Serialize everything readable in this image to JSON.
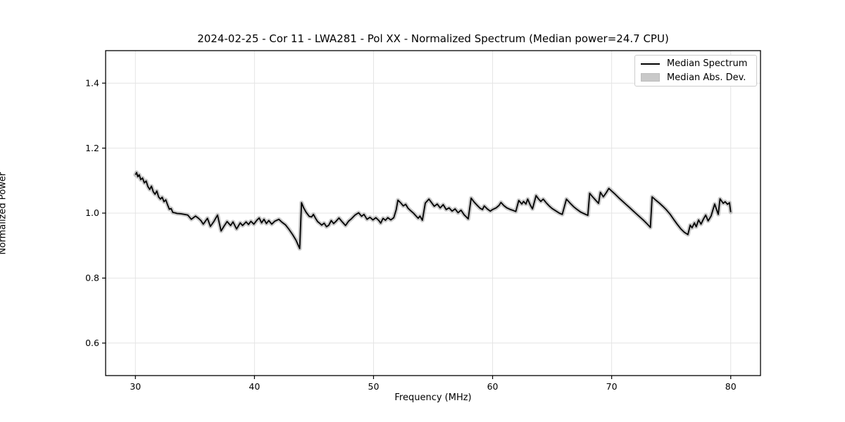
{
  "figure": {
    "title": "2024-02-25 - Cor 11 - LWA281 - Pol XX - Normalized Spectrum (Median power=24.7 CPU)"
  },
  "legend": {
    "items": [
      {
        "label": "Median Spectrum",
        "swatch": "line",
        "color": "#000000"
      },
      {
        "label": "Median Abs. Dev.",
        "swatch": "patch",
        "color": "#c9c9c9"
      }
    ]
  },
  "chart_data": {
    "type": "line",
    "title": "2024-02-25 - Cor 11 - LWA281 - Pol XX - Normalized Spectrum (Median power=24.7 CPU)",
    "xlabel": "Frequency (MHz)",
    "ylabel": "Normalized Power",
    "xlim": [
      27.5,
      82.5
    ],
    "ylim": [
      0.5,
      1.5
    ],
    "xticks": [
      30,
      40,
      50,
      60,
      70,
      80
    ],
    "xtick_labels": [
      "30",
      "40",
      "50",
      "60",
      "70",
      "80"
    ],
    "yticks": [
      0.6,
      0.8,
      1.0,
      1.2,
      1.4
    ],
    "ytick_labels": [
      "0.6",
      "0.8",
      "1.0",
      "1.2",
      "1.4"
    ],
    "grid": true,
    "grid_color": "#e4e4e4",
    "legend_position": "upper right",
    "series": [
      {
        "name": "Median Spectrum",
        "color": "#000000",
        "style": "line",
        "points": [
          [
            30.0,
            1.118
          ],
          [
            30.1,
            1.125
          ],
          [
            30.2,
            1.112
          ],
          [
            30.32,
            1.118
          ],
          [
            30.45,
            1.103
          ],
          [
            30.6,
            1.108
          ],
          [
            30.75,
            1.093
          ],
          [
            30.9,
            1.099
          ],
          [
            31.05,
            1.082
          ],
          [
            31.2,
            1.073
          ],
          [
            31.35,
            1.083
          ],
          [
            31.5,
            1.066
          ],
          [
            31.65,
            1.058
          ],
          [
            31.8,
            1.068
          ],
          [
            31.95,
            1.05
          ],
          [
            32.1,
            1.043
          ],
          [
            32.25,
            1.049
          ],
          [
            32.4,
            1.035
          ],
          [
            32.55,
            1.041
          ],
          [
            32.7,
            1.026
          ],
          [
            32.85,
            1.012
          ],
          [
            33.0,
            1.014
          ],
          [
            33.15,
            1.002
          ],
          [
            33.3,
            1.001
          ],
          [
            33.5,
            0.999
          ],
          [
            33.8,
            0.998
          ],
          [
            34.1,
            0.996
          ],
          [
            34.4,
            0.994
          ],
          [
            34.7,
            0.981
          ],
          [
            35.05,
            0.991
          ],
          [
            35.3,
            0.984
          ],
          [
            35.5,
            0.977
          ],
          [
            35.7,
            0.966
          ],
          [
            36.05,
            0.984
          ],
          [
            36.3,
            0.959
          ],
          [
            36.6,
            0.975
          ],
          [
            36.9,
            0.994
          ],
          [
            37.2,
            0.945
          ],
          [
            37.45,
            0.96
          ],
          [
            37.7,
            0.974
          ],
          [
            38.0,
            0.962
          ],
          [
            38.2,
            0.973
          ],
          [
            38.5,
            0.951
          ],
          [
            38.8,
            0.97
          ],
          [
            39.0,
            0.962
          ],
          [
            39.3,
            0.973
          ],
          [
            39.5,
            0.965
          ],
          [
            39.7,
            0.975
          ],
          [
            39.95,
            0.966
          ],
          [
            40.2,
            0.978
          ],
          [
            40.4,
            0.985
          ],
          [
            40.6,
            0.97
          ],
          [
            40.8,
            0.981
          ],
          [
            41.0,
            0.968
          ],
          [
            41.2,
            0.977
          ],
          [
            41.45,
            0.966
          ],
          [
            41.7,
            0.975
          ],
          [
            42.05,
            0.981
          ],
          [
            42.3,
            0.972
          ],
          [
            42.6,
            0.964
          ],
          [
            42.9,
            0.95
          ],
          [
            43.2,
            0.934
          ],
          [
            43.5,
            0.916
          ],
          [
            43.8,
            0.891
          ],
          [
            43.95,
            1.032
          ],
          [
            44.15,
            1.015
          ],
          [
            44.35,
            1.002
          ],
          [
            44.6,
            0.99
          ],
          [
            44.8,
            0.988
          ],
          [
            44.95,
            0.996
          ],
          [
            45.15,
            0.983
          ],
          [
            45.3,
            0.974
          ],
          [
            45.5,
            0.968
          ],
          [
            45.65,
            0.963
          ],
          [
            45.85,
            0.969
          ],
          [
            46.05,
            0.958
          ],
          [
            46.25,
            0.963
          ],
          [
            46.45,
            0.977
          ],
          [
            46.65,
            0.968
          ],
          [
            46.85,
            0.975
          ],
          [
            47.1,
            0.985
          ],
          [
            47.35,
            0.974
          ],
          [
            47.65,
            0.962
          ],
          [
            47.9,
            0.975
          ],
          [
            48.15,
            0.983
          ],
          [
            48.45,
            0.994
          ],
          [
            48.75,
            1.001
          ],
          [
            49.0,
            0.99
          ],
          [
            49.2,
            0.996
          ],
          [
            49.45,
            0.981
          ],
          [
            49.7,
            0.987
          ],
          [
            49.95,
            0.979
          ],
          [
            50.2,
            0.986
          ],
          [
            50.45,
            0.977
          ],
          [
            50.6,
            0.969
          ],
          [
            50.8,
            0.984
          ],
          [
            51.0,
            0.978
          ],
          [
            51.2,
            0.986
          ],
          [
            51.45,
            0.979
          ],
          [
            51.7,
            0.986
          ],
          [
            51.9,
            1.01
          ],
          [
            52.05,
            1.04
          ],
          [
            52.3,
            1.031
          ],
          [
            52.5,
            1.022
          ],
          [
            52.7,
            1.027
          ],
          [
            52.9,
            1.015
          ],
          [
            53.1,
            1.008
          ],
          [
            53.35,
            1.0
          ],
          [
            53.6,
            0.99
          ],
          [
            53.75,
            0.984
          ],
          [
            53.9,
            0.991
          ],
          [
            54.1,
            0.978
          ],
          [
            54.35,
            1.031
          ],
          [
            54.65,
            1.043
          ],
          [
            54.9,
            1.031
          ],
          [
            55.1,
            1.021
          ],
          [
            55.35,
            1.028
          ],
          [
            55.6,
            1.016
          ],
          [
            55.85,
            1.026
          ],
          [
            56.1,
            1.011
          ],
          [
            56.35,
            1.016
          ],
          [
            56.6,
            1.006
          ],
          [
            56.85,
            1.013
          ],
          [
            57.1,
            1.001
          ],
          [
            57.35,
            1.009
          ],
          [
            57.6,
            0.995
          ],
          [
            57.8,
            0.988
          ],
          [
            57.95,
            0.982
          ],
          [
            58.2,
            1.046
          ],
          [
            58.45,
            1.034
          ],
          [
            58.7,
            1.024
          ],
          [
            58.95,
            1.015
          ],
          [
            59.15,
            1.011
          ],
          [
            59.3,
            1.022
          ],
          [
            59.55,
            1.013
          ],
          [
            59.8,
            1.006
          ],
          [
            60.0,
            1.011
          ],
          [
            60.3,
            1.016
          ],
          [
            60.55,
            1.024
          ],
          [
            60.7,
            1.033
          ],
          [
            60.95,
            1.023
          ],
          [
            61.2,
            1.016
          ],
          [
            61.5,
            1.011
          ],
          [
            61.75,
            1.008
          ],
          [
            61.95,
            1.005
          ],
          [
            62.2,
            1.039
          ],
          [
            62.45,
            1.028
          ],
          [
            62.6,
            1.036
          ],
          [
            62.8,
            1.028
          ],
          [
            62.95,
            1.043
          ],
          [
            63.15,
            1.026
          ],
          [
            63.35,
            1.013
          ],
          [
            63.65,
            1.054
          ],
          [
            63.85,
            1.044
          ],
          [
            64.05,
            1.036
          ],
          [
            64.25,
            1.043
          ],
          [
            64.5,
            1.032
          ],
          [
            64.75,
            1.022
          ],
          [
            65.0,
            1.014
          ],
          [
            65.3,
            1.007
          ],
          [
            65.6,
            1.0
          ],
          [
            65.85,
            0.996
          ],
          [
            66.2,
            1.043
          ],
          [
            66.5,
            1.031
          ],
          [
            66.8,
            1.02
          ],
          [
            67.1,
            1.011
          ],
          [
            67.4,
            1.003
          ],
          [
            67.7,
            0.998
          ],
          [
            68.0,
            0.993
          ],
          [
            68.15,
            1.061
          ],
          [
            68.4,
            1.05
          ],
          [
            68.65,
            1.04
          ],
          [
            68.9,
            1.03
          ],
          [
            69.05,
            1.064
          ],
          [
            69.3,
            1.05
          ],
          [
            69.55,
            1.063
          ],
          [
            69.76,
            1.076
          ],
          [
            70.0,
            1.068
          ],
          [
            70.3,
            1.058
          ],
          [
            70.6,
            1.047
          ],
          [
            70.9,
            1.037
          ],
          [
            71.2,
            1.027
          ],
          [
            71.5,
            1.017
          ],
          [
            71.8,
            1.007
          ],
          [
            72.1,
            0.997
          ],
          [
            72.4,
            0.987
          ],
          [
            72.7,
            0.977
          ],
          [
            73.0,
            0.966
          ],
          [
            73.25,
            0.956
          ],
          [
            73.4,
            1.05
          ],
          [
            73.7,
            1.04
          ],
          [
            74.0,
            1.031
          ],
          [
            74.3,
            1.021
          ],
          [
            74.6,
            1.01
          ],
          [
            74.9,
            0.997
          ],
          [
            75.2,
            0.981
          ],
          [
            75.5,
            0.966
          ],
          [
            75.8,
            0.952
          ],
          [
            76.1,
            0.941
          ],
          [
            76.4,
            0.934
          ],
          [
            76.6,
            0.963
          ],
          [
            76.75,
            0.955
          ],
          [
            76.95,
            0.97
          ],
          [
            77.1,
            0.958
          ],
          [
            77.3,
            0.979
          ],
          [
            77.5,
            0.966
          ],
          [
            77.7,
            0.981
          ],
          [
            77.9,
            0.994
          ],
          [
            78.1,
            0.976
          ],
          [
            78.35,
            0.991
          ],
          [
            78.65,
            1.028
          ],
          [
            78.95,
            0.996
          ],
          [
            79.1,
            1.044
          ],
          [
            79.37,
            1.03
          ],
          [
            79.53,
            1.035
          ],
          [
            79.73,
            1.027
          ],
          [
            79.89,
            1.032
          ],
          [
            80.0,
            1.003
          ]
        ]
      },
      {
        "name": "Median Abs. Dev.",
        "color": "#c9c9c9",
        "style": "band",
        "follows": "Median Spectrum",
        "band_halfwidth": 0.006
      }
    ]
  }
}
